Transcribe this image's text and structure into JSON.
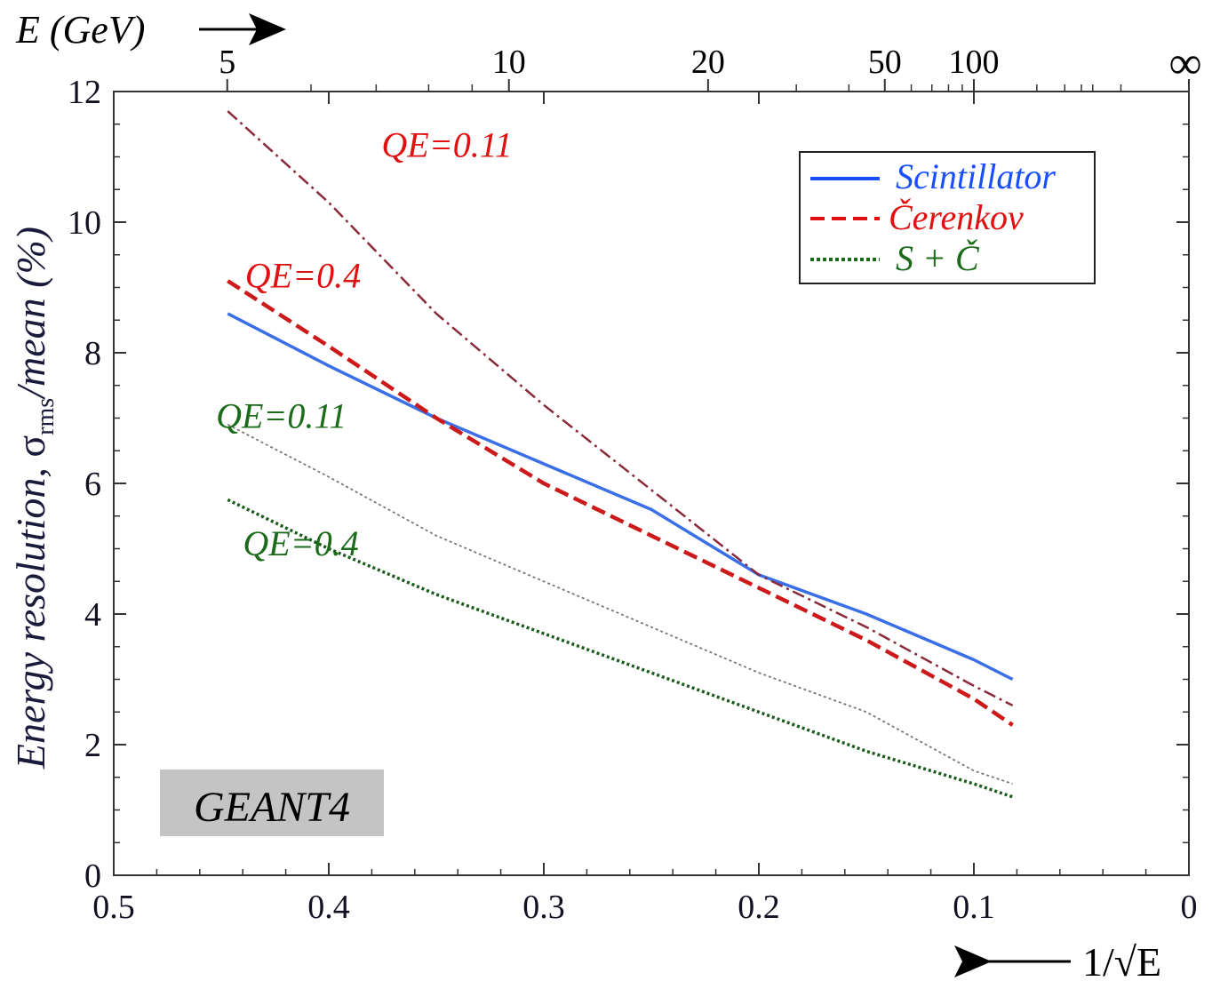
{
  "chart_data": {
    "type": "line",
    "top_axis_title": "E (GeV)",
    "top_ticks": [
      {
        "label": "5",
        "E": 5
      },
      {
        "label": "10",
        "E": 10
      },
      {
        "label": "20",
        "E": 20
      },
      {
        "label": "50",
        "E": 50
      },
      {
        "label": "100",
        "E": 100
      },
      {
        "label": "∞",
        "E": "inf"
      }
    ],
    "ylabel": "Energy resolution, σrms/mean (%)",
    "ylabel_parts": {
      "pre": "Energy resolution, ",
      "sigma": "σ",
      "sub": "rms",
      "post": "/mean (%)"
    },
    "xlabel": "1/√E",
    "xlim": [
      0.5,
      0
    ],
    "ylim": [
      0,
      12
    ],
    "x_ticks": [
      "0.5",
      "0.4",
      "0.3",
      "0.2",
      "0.1",
      "0"
    ],
    "y_ticks": [
      "0",
      "2",
      "4",
      "6",
      "8",
      "10",
      "12"
    ],
    "legend": {
      "position": "top-right",
      "entries": [
        {
          "label": "Scintillator",
          "color": "#1a4fff",
          "style": "solid"
        },
        {
          "label": "Čerenkov",
          "color": "#e01010",
          "style": "dashed"
        },
        {
          "label": "S + Č",
          "color": "#1a6b1a",
          "style": "dotted"
        }
      ]
    },
    "series": [
      {
        "name": "Scintillator",
        "qe": "",
        "color": "#3a6fe8",
        "style": "solid",
        "x": [
          0.447,
          0.4,
          0.35,
          0.3,
          0.25,
          0.2,
          0.15,
          0.1,
          0.082
        ],
        "y": [
          8.6,
          7.8,
          7.0,
          6.3,
          5.6,
          4.6,
          4.0,
          3.3,
          3.0
        ]
      },
      {
        "name": "Čerenkov",
        "qe": "QE=0.4",
        "color": "#cc1a1a",
        "style": "dashed",
        "x": [
          0.447,
          0.4,
          0.35,
          0.3,
          0.25,
          0.2,
          0.15,
          0.1,
          0.082
        ],
        "y": [
          9.1,
          8.1,
          7.0,
          6.0,
          5.2,
          4.4,
          3.6,
          2.7,
          2.3
        ]
      },
      {
        "name": "Čerenkov",
        "qe": "QE=0.11",
        "color": "#8a2a3a",
        "style": "dashdot",
        "x": [
          0.447,
          0.4,
          0.35,
          0.3,
          0.25,
          0.2,
          0.15,
          0.1,
          0.082
        ],
        "y": [
          11.7,
          10.3,
          8.6,
          7.2,
          5.9,
          4.6,
          3.8,
          2.9,
          2.6
        ]
      },
      {
        "name": "S + Č",
        "qe": "QE=0.11",
        "color": "#777777",
        "style": "dotted",
        "x": [
          0.447,
          0.4,
          0.35,
          0.3,
          0.25,
          0.2,
          0.15,
          0.1,
          0.082
        ],
        "y": [
          6.9,
          6.1,
          5.2,
          4.5,
          3.8,
          3.1,
          2.5,
          1.6,
          1.4
        ]
      },
      {
        "name": "S + Č",
        "qe": "QE=0.4",
        "color": "#1a5a1a",
        "style": "dotted",
        "x": [
          0.447,
          0.4,
          0.35,
          0.3,
          0.25,
          0.2,
          0.15,
          0.1,
          0.082
        ],
        "y": [
          5.75,
          5.0,
          4.3,
          3.7,
          3.1,
          2.5,
          1.9,
          1.4,
          1.2
        ]
      }
    ],
    "annotations": [
      {
        "text": "QE=0.11",
        "color": "#e01010",
        "x": 0.345,
        "y": 11.0
      },
      {
        "text": "QE=0.4",
        "color": "#e01010",
        "x": 0.412,
        "y": 9.0
      },
      {
        "text": "QE=0.11",
        "color": "#1a6b1a",
        "x": 0.422,
        "y": 6.85
      },
      {
        "text": "QE=0.4",
        "color": "#1a6b1a",
        "x": 0.413,
        "y": 4.9
      }
    ],
    "badge": "GEANT4",
    "grid": false
  }
}
